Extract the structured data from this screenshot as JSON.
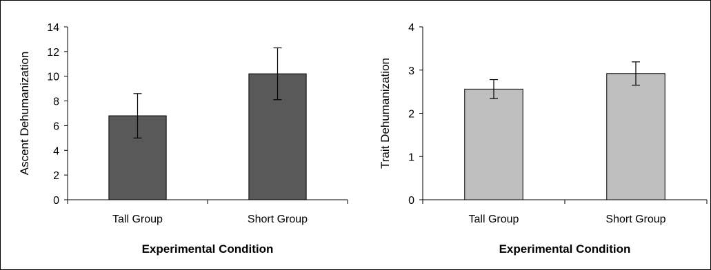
{
  "chart_data": [
    {
      "type": "bar",
      "categories": [
        "Tall Group",
        "Short Group"
      ],
      "values": [
        6.8,
        10.2
      ],
      "error": [
        1.8,
        2.1
      ],
      "ylabel": "Ascent  Dehumanization",
      "xlabel": "Experimental Condition",
      "ylim": [
        0,
        14
      ],
      "yticks": [
        0,
        2,
        4,
        6,
        8,
        10,
        12,
        14
      ],
      "bar_color": "#595959",
      "grid": false
    },
    {
      "type": "bar",
      "categories": [
        "Tall Group",
        "Short Group"
      ],
      "values": [
        2.56,
        2.92
      ],
      "error": [
        0.22,
        0.27
      ],
      "ylabel": "Trait  Dehumanization",
      "xlabel": "Experimental Condition",
      "ylim": [
        0,
        4
      ],
      "yticks": [
        0,
        1,
        2,
        3,
        4
      ],
      "bar_color": "#bfbfbf",
      "grid": false
    }
  ]
}
